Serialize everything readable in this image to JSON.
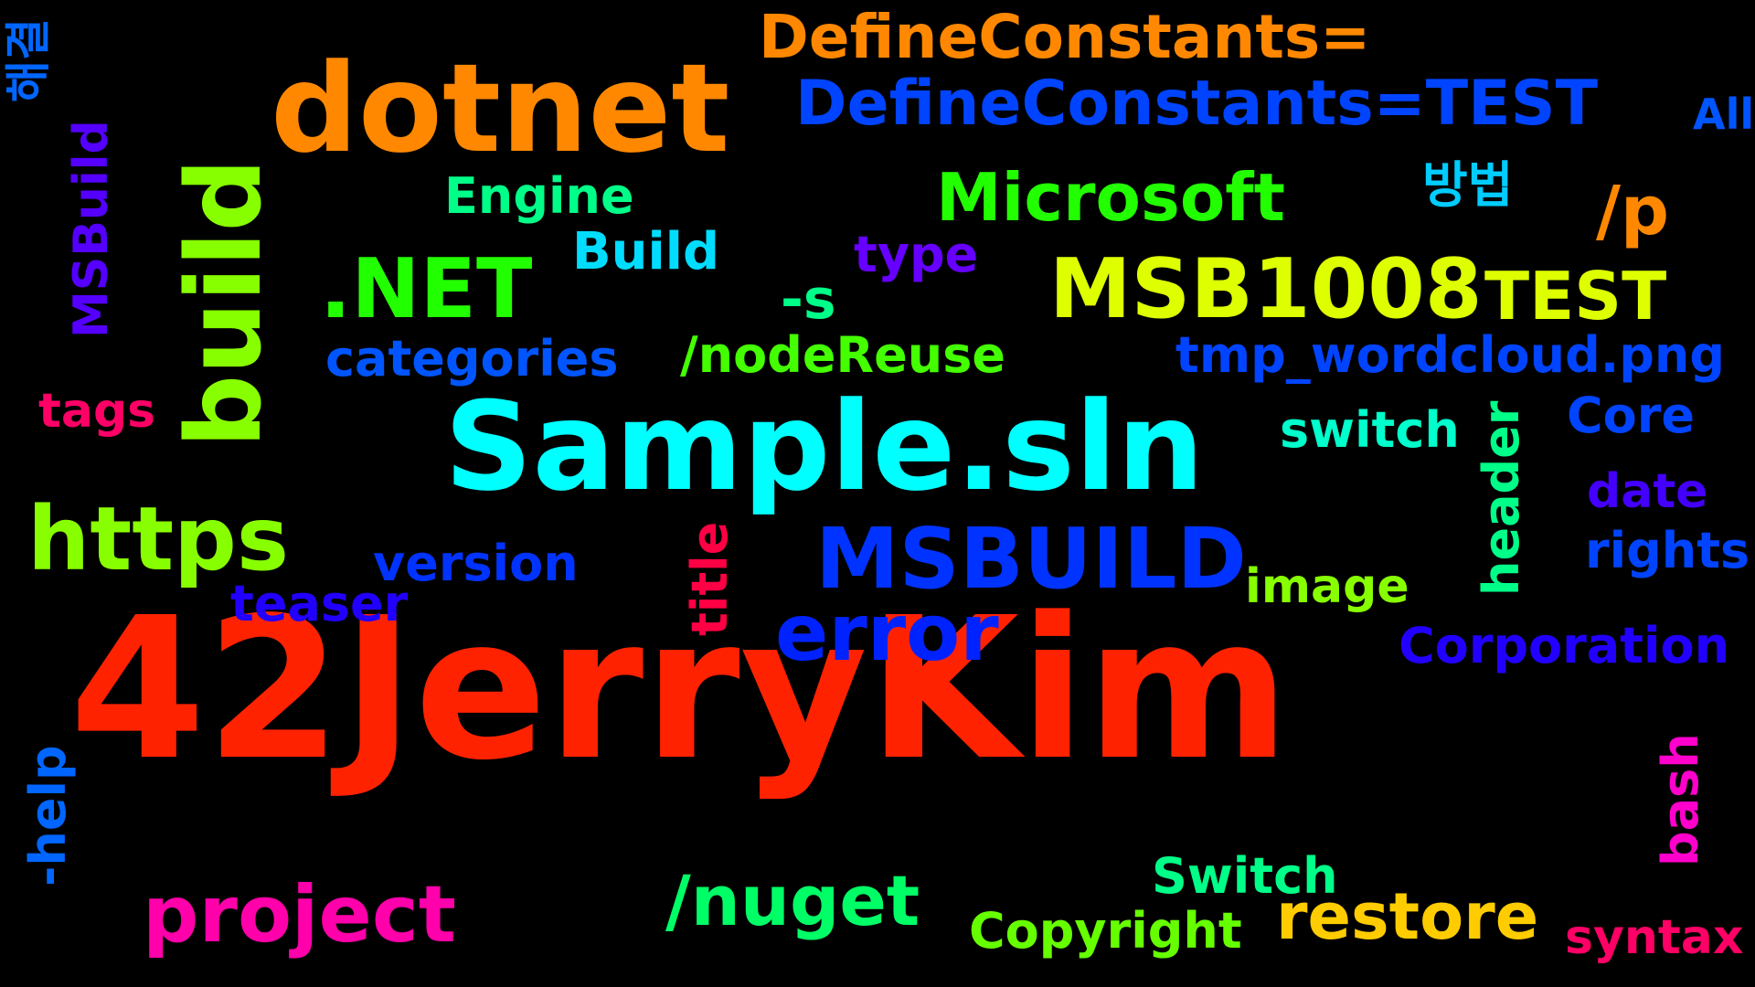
{
  "words": {
    "jerrykim": {
      "text": "42JerryKim",
      "color": "#ff2200"
    },
    "sample_sln": {
      "text": "Sample.sln",
      "color": "#00ffff"
    },
    "dotnet": {
      "text": "dotnet",
      "color": "#ff8800"
    },
    "build_vertical": {
      "text": "build",
      "color": "#88ff00"
    },
    "https": {
      "text": "https",
      "color": "#88ff00"
    },
    "msbuild_caps": {
      "text": "MSBUILD",
      "color": "#0033ff"
    },
    "msb1008": {
      "text": "MSB1008",
      "color": "#ddff00"
    },
    "defineconstants_test": {
      "text": "DefineConstants=TEST",
      "color": "#0044ff"
    },
    "defineconstants_eq": {
      "text": "DefineConstants=",
      "color": "#ff8800"
    },
    "microsoft": {
      "text": "Microsoft",
      "color": "#22ff00"
    },
    "dotnet_net": {
      "text": ".NET",
      "color": "#22ff00"
    },
    "error": {
      "text": "error",
      "color": "#0022ff"
    },
    "project": {
      "text": "project",
      "color": "#ff00aa"
    },
    "nuget": {
      "text": "/nuget",
      "color": "#00ff66"
    },
    "restore": {
      "text": "restore",
      "color": "#ffcc00"
    },
    "test": {
      "text": "TEST",
      "color": "#ddff00"
    },
    "p_switch": {
      "text": "/p",
      "color": "#ff8800"
    },
    "s_flag": {
      "text": "-s",
      "color": "#00ff88"
    },
    "engine": {
      "text": "Engine",
      "color": "#00ff88"
    },
    "build_word": {
      "text": "Build",
      "color": "#00ddff"
    },
    "type": {
      "text": "type",
      "color": "#6600ff"
    },
    "categories": {
      "text": "categories",
      "color": "#0055ff"
    },
    "nodereuse": {
      "text": "/nodeReuse",
      "color": "#44ff00"
    },
    "tmp_wordcloud": {
      "text": "tmp_wordcloud.png",
      "color": "#0044ff"
    },
    "tags": {
      "text": "tags",
      "color": "#ff0066"
    },
    "switch_lower": {
      "text": "switch",
      "color": "#00ffcc"
    },
    "core": {
      "text": "Core",
      "color": "#0044ff"
    },
    "date": {
      "text": "date",
      "color": "#4400ff"
    },
    "rights": {
      "text": "rights",
      "color": "#0044ff"
    },
    "version": {
      "text": "version",
      "color": "#0033ff"
    },
    "teaser": {
      "text": "teaser",
      "color": "#2200ff"
    },
    "image": {
      "text": "image",
      "color": "#88ff00"
    },
    "corporation": {
      "text": "Corporation",
      "color": "#2200ff"
    },
    "switch_cap": {
      "text": "Switch",
      "color": "#00ff88"
    },
    "copyright": {
      "text": "Copyright",
      "color": "#66ff00"
    },
    "syntax": {
      "text": "syntax",
      "color": "#ff0066"
    },
    "all": {
      "text": "All",
      "color": "#0055ff"
    },
    "method_ko": {
      "text": "방법",
      "color": "#00ccff"
    },
    "solve_ko": {
      "text": "해결",
      "color": "#0066ff"
    },
    "msbuild_vertical": {
      "text": "MSBuild",
      "color": "#5500ff"
    },
    "header": {
      "text": "header",
      "color": "#00ff88"
    },
    "title": {
      "text": "title",
      "color": "#ff0044"
    },
    "bash": {
      "text": "bash",
      "color": "#ff00cc"
    },
    "help": {
      "text": "-help",
      "color": "#0066ff"
    }
  }
}
